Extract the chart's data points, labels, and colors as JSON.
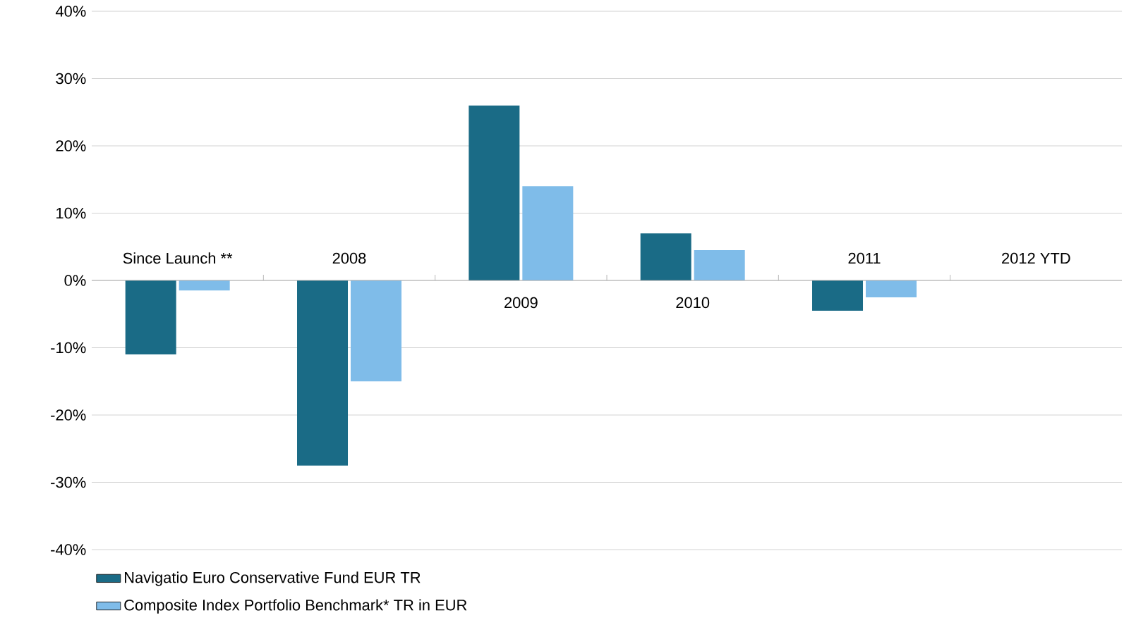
{
  "chart_data": {
    "type": "bar",
    "categories": [
      "Since Launch **",
      "2008",
      "2009",
      "2010",
      "2011",
      "2012 YTD"
    ],
    "series": [
      {
        "name": "Navigatio Euro Conservative Fund EUR TR",
        "color": "#1a6b86",
        "values": [
          -11,
          -27.5,
          26,
          7,
          -4.5,
          null
        ]
      },
      {
        "name": "Composite Index Portfolio Benchmark* TR in EUR",
        "color": "#7fbce9",
        "values": [
          -1.5,
          -15,
          14,
          4.5,
          -2.5,
          null
        ]
      }
    ],
    "ylim": [
      -40,
      40
    ],
    "yticks": [
      {
        "value": 40,
        "label": "40%"
      },
      {
        "value": 30,
        "label": "30%"
      },
      {
        "value": 20,
        "label": "20%"
      },
      {
        "value": 10,
        "label": "10%"
      },
      {
        "value": 0,
        "label": "0%"
      },
      {
        "value": -10,
        "label": "-10%"
      },
      {
        "value": -20,
        "label": "-20%"
      },
      {
        "value": -30,
        "label": "-30%"
      },
      {
        "value": -40,
        "label": "-40%"
      }
    ],
    "grid": "y",
    "legend": "bottom"
  }
}
